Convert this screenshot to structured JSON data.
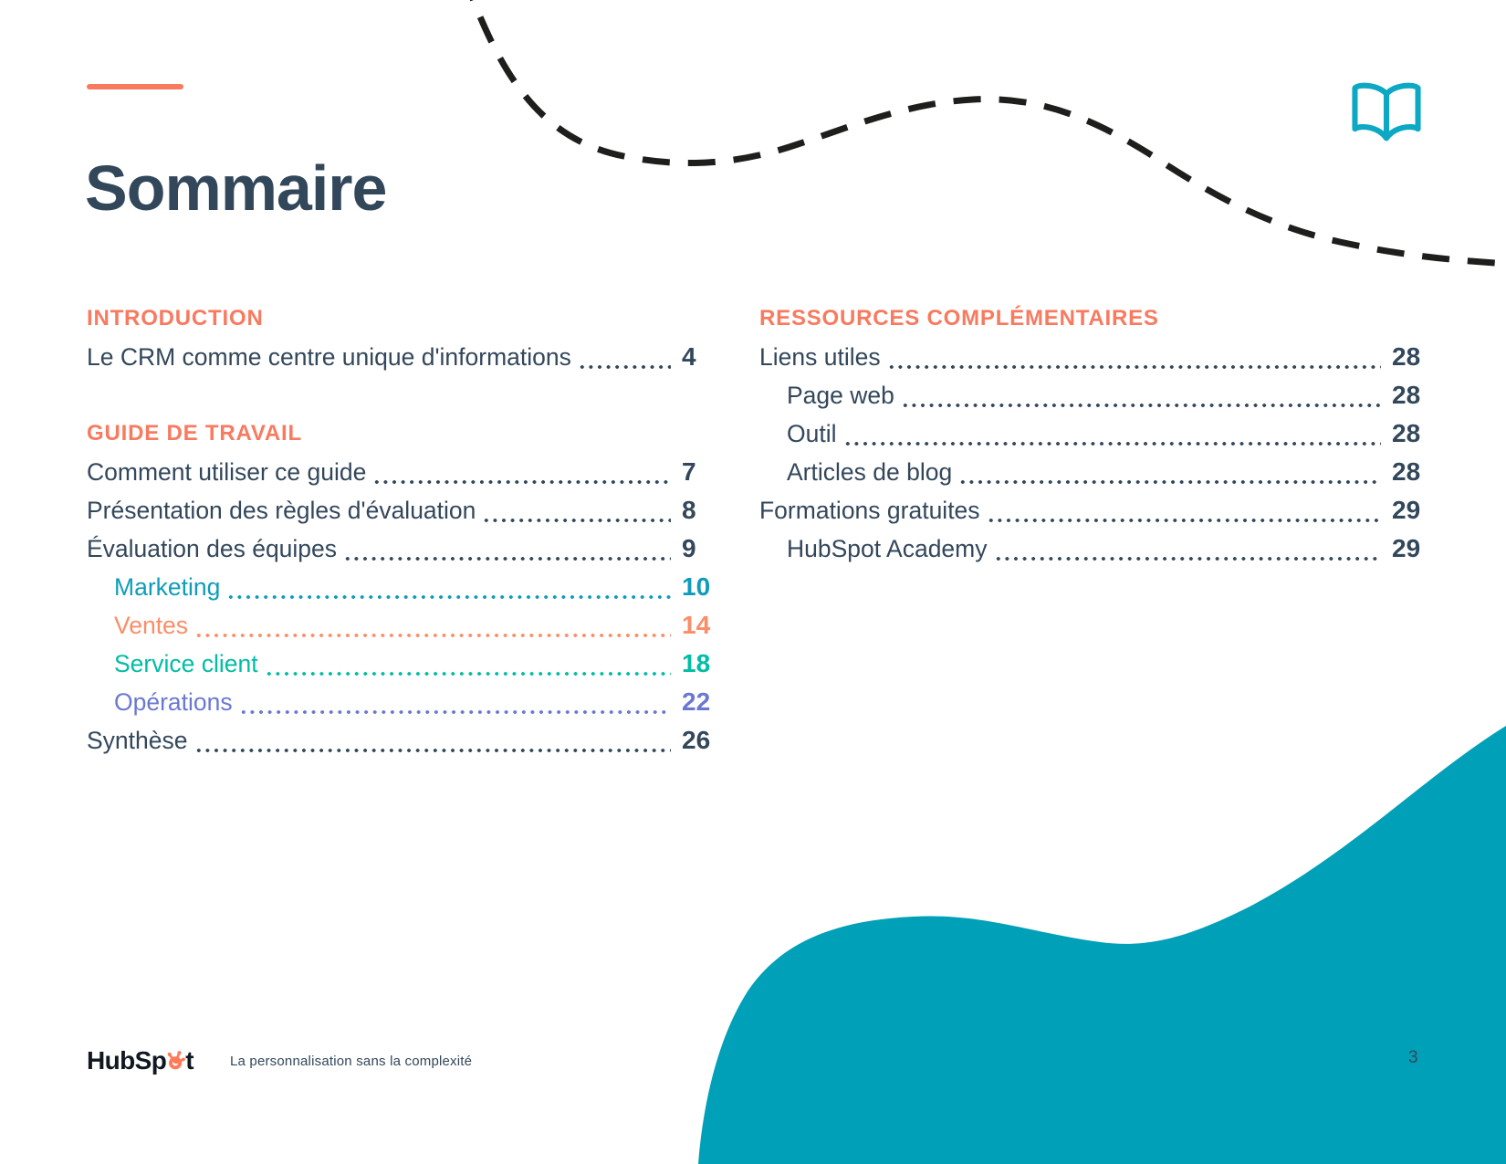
{
  "page": {
    "title": "Sommaire",
    "page_number": "3"
  },
  "footer": {
    "logo_text_left": "HubSp",
    "logo_text_right": "t",
    "logo_alt": "HubSpot",
    "tagline": "La personnalisation sans la complexité"
  },
  "palette": {
    "ink": "#33475b",
    "coral": "#f87a5f",
    "marketing": "#0f9cba",
    "ventes": "#fc8d66",
    "service": "#00bda5",
    "operations": "#6a78d1",
    "blob": "#00a0b8",
    "dash": "#1e1e1c",
    "book": "#0ca8c4",
    "sprocket": "#ff7a59"
  },
  "toc": {
    "left_sections": [
      {
        "header": "INTRODUCTION",
        "items": [
          {
            "label": "Le CRM comme centre unique d'informations",
            "page": "4"
          }
        ]
      },
      {
        "header": "GUIDE DE TRAVAIL",
        "items": [
          {
            "label": "Comment utiliser ce guide",
            "page": "7"
          },
          {
            "label": "Présentation des règles d'évaluation",
            "page": "8"
          },
          {
            "label": "Évaluation des équipes",
            "page": "9"
          },
          {
            "label": "Marketing",
            "page": "10",
            "indent": true,
            "color": "marketing"
          },
          {
            "label": "Ventes",
            "page": "14",
            "indent": true,
            "color": "ventes"
          },
          {
            "label": "Service client",
            "page": "18",
            "indent": true,
            "color": "service"
          },
          {
            "label": "Opérations",
            "page": "22",
            "indent": true,
            "color": "operations"
          },
          {
            "label": "Synthèse",
            "page": "26"
          }
        ]
      }
    ],
    "right_sections": [
      {
        "header": "RESSOURCES COMPLÉMENTAIRES",
        "items": [
          {
            "label": "Liens utiles",
            "page": "28"
          },
          {
            "label": "Page web",
            "page": "28",
            "indent": true
          },
          {
            "label": "Outil",
            "page": "28",
            "indent": true
          },
          {
            "label": "Articles de blog",
            "page": "28",
            "indent": true
          },
          {
            "label": "Formations gratuites",
            "page": "29"
          },
          {
            "label": "HubSpot Academy",
            "page": "29",
            "indent": true
          }
        ]
      }
    ]
  }
}
